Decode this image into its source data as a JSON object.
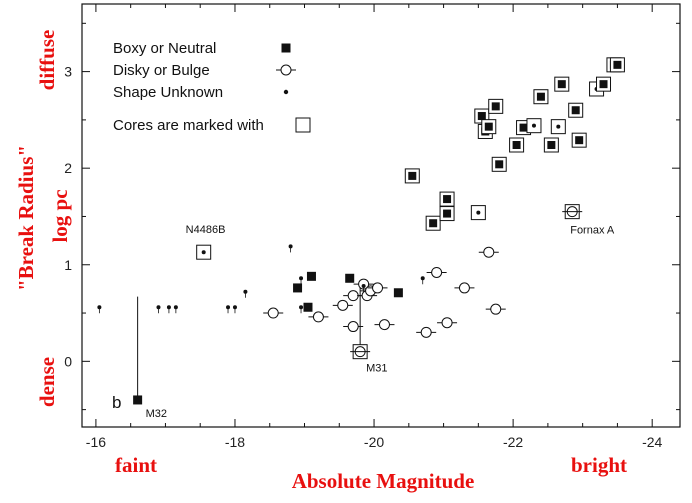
{
  "chart_data": {
    "type": "scatter",
    "title": "",
    "panel_label": "b",
    "xlabel": "Absolute Magnitude",
    "ylabel": "\"Break Radius\"",
    "ylabel_sub": "log pc",
    "y_top_word": "diffuse",
    "y_bottom_word": "dense",
    "x_left_word": "faint",
    "x_right_word": "bright",
    "xlim": [
      -15.8,
      -24.4
    ],
    "ylim": [
      -0.68,
      3.7
    ],
    "x_ticks": [
      -16,
      -18,
      -20,
      -22,
      -24
    ],
    "x_tick_labels": [
      "-16",
      "-18",
      "-20",
      "-22",
      "-24"
    ],
    "y_ticks": [
      0,
      1,
      2,
      3
    ],
    "y_tick_labels": [
      "0",
      "1",
      "2",
      "3"
    ],
    "grid": false,
    "legend_position": "top-left",
    "legend": [
      {
        "label": "Boxy or Neutral",
        "marker": "filled-square"
      },
      {
        "label": "Disky or Bulge",
        "marker": "open-circle-bar"
      },
      {
        "label": "Shape Unknown",
        "marker": "small-dot"
      },
      {
        "label": "Cores are marked with",
        "marker": "open-square"
      }
    ],
    "series": [
      {
        "name": "Boxy or Neutral",
        "marker": "filled-square",
        "points": [
          {
            "x": -16.6,
            "y": -0.4
          },
          {
            "x": -18.9,
            "y": 0.76
          },
          {
            "x": -19.1,
            "y": 0.88
          },
          {
            "x": -19.05,
            "y": 0.56
          },
          {
            "x": -19.65,
            "y": 0.86
          },
          {
            "x": -20.35,
            "y": 0.71
          }
        ]
      },
      {
        "name": "Disky or Bulge",
        "marker": "open-circle-bar",
        "points": [
          {
            "x": -18.55,
            "y": 0.5
          },
          {
            "x": -19.2,
            "y": 0.46
          },
          {
            "x": -19.55,
            "y": 0.58
          },
          {
            "x": -19.7,
            "y": 0.68
          },
          {
            "x": -19.85,
            "y": 0.8
          },
          {
            "x": -19.9,
            "y": 0.68
          },
          {
            "x": -19.95,
            "y": 0.73
          },
          {
            "x": -20.05,
            "y": 0.76
          },
          {
            "x": -19.7,
            "y": 0.36
          },
          {
            "x": -20.15,
            "y": 0.38
          },
          {
            "x": -20.75,
            "y": 0.3
          },
          {
            "x": -20.9,
            "y": 0.92
          },
          {
            "x": -21.05,
            "y": 0.4
          },
          {
            "x": -21.3,
            "y": 0.76
          },
          {
            "x": -21.65,
            "y": 1.13
          },
          {
            "x": -21.75,
            "y": 0.54
          }
        ]
      },
      {
        "name": "Shape Unknown",
        "marker": "small-dot",
        "points": [
          {
            "x": -16.05,
            "y": 0.56
          },
          {
            "x": -16.9,
            "y": 0.56
          },
          {
            "x": -17.05,
            "y": 0.56
          },
          {
            "x": -17.15,
            "y": 0.56
          },
          {
            "x": -17.9,
            "y": 0.56
          },
          {
            "x": -18.0,
            "y": 0.56
          },
          {
            "x": -18.15,
            "y": 0.72
          },
          {
            "x": -18.8,
            "y": 1.19
          },
          {
            "x": -18.95,
            "y": 0.86
          },
          {
            "x": -18.95,
            "y": 0.56
          },
          {
            "x": -19.85,
            "y": 0.78
          },
          {
            "x": -20.7,
            "y": 0.86
          }
        ]
      },
      {
        "name": "Cores are marked with",
        "marker": "open-square",
        "points": [
          {
            "x": -17.55,
            "y": 1.13,
            "inner": "dot"
          },
          {
            "x": -19.8,
            "y": 0.1,
            "inner": "circle"
          },
          {
            "x": -20.55,
            "y": 1.92,
            "inner": "filled"
          },
          {
            "x": -20.85,
            "y": 1.43,
            "inner": "filled"
          },
          {
            "x": -21.05,
            "y": 1.68,
            "inner": "filled"
          },
          {
            "x": -21.05,
            "y": 1.53,
            "inner": "filled"
          },
          {
            "x": -21.5,
            "y": 1.54,
            "inner": "dot"
          },
          {
            "x": -21.55,
            "y": 2.54,
            "inner": "filled"
          },
          {
            "x": -21.6,
            "y": 2.38,
            "inner": "filled"
          },
          {
            "x": -21.65,
            "y": 2.43,
            "inner": "filled"
          },
          {
            "x": -21.75,
            "y": 2.64,
            "inner": "filled"
          },
          {
            "x": -21.8,
            "y": 2.04,
            "inner": "filled"
          },
          {
            "x": -22.05,
            "y": 2.24,
            "inner": "filled"
          },
          {
            "x": -22.15,
            "y": 2.42,
            "inner": "filled"
          },
          {
            "x": -22.3,
            "y": 2.44,
            "inner": "dot"
          },
          {
            "x": -22.4,
            "y": 2.74,
            "inner": "filled"
          },
          {
            "x": -22.55,
            "y": 2.24,
            "inner": "filled"
          },
          {
            "x": -22.65,
            "y": 2.43,
            "inner": "dot"
          },
          {
            "x": -22.7,
            "y": 2.87,
            "inner": "filled"
          },
          {
            "x": -22.85,
            "y": 1.55,
            "inner": "circle"
          },
          {
            "x": -22.9,
            "y": 2.6,
            "inner": "filled"
          },
          {
            "x": -22.95,
            "y": 2.29,
            "inner": "filled"
          },
          {
            "x": -23.2,
            "y": 2.82,
            "inner": "dot"
          },
          {
            "x": -23.3,
            "y": 2.87,
            "inner": "filled"
          },
          {
            "x": -23.45,
            "y": 3.07,
            "inner": "filled"
          },
          {
            "x": -23.5,
            "y": 3.07,
            "inner": "filled"
          }
        ]
      }
    ],
    "annotations": [
      {
        "text": "N4486B",
        "x": -17.55,
        "y": 1.13
      },
      {
        "text": "M31",
        "x": -19.8,
        "y": 0.1
      },
      {
        "text": "M32",
        "x": -16.6,
        "y": -0.4
      },
      {
        "text": "Fornax A",
        "x": -22.85,
        "y": 1.55
      }
    ],
    "m32_bar_top": 0.67
  }
}
